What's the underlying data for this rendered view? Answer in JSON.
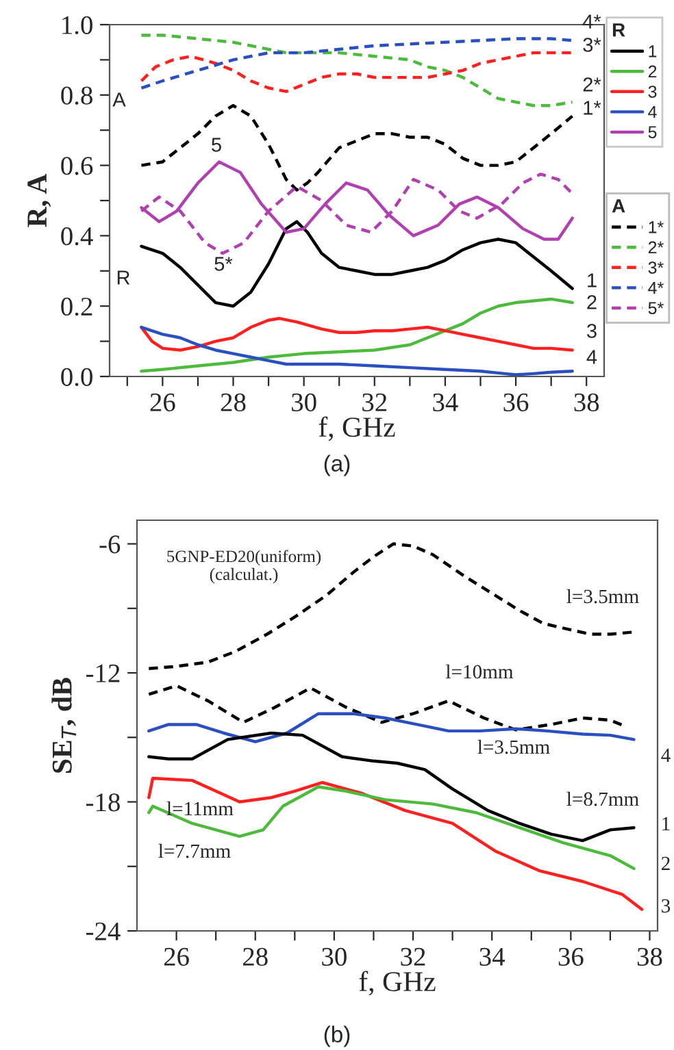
{
  "chart_data": [
    {
      "type": "line",
      "xlabel": "f, GHz",
      "ylabel": "R, A",
      "legend": "right",
      "legend_title": [
        "R",
        "A"
      ],
      "grid": false,
      "xlim": [
        24.5,
        38.5
      ],
      "ylim": [
        0,
        1.0
      ],
      "xticks": [
        {
          "value": 25,
          "label": null
        },
        26,
        {
          "value": 27,
          "label": null
        },
        28,
        {
          "value": 29,
          "label": null
        },
        30,
        {
          "value": 31,
          "label": null
        },
        32,
        {
          "value": 33,
          "label": null
        },
        34,
        {
          "value": 35,
          "label": null
        },
        36,
        {
          "value": 37,
          "label": null
        },
        38
      ],
      "yticks": [
        {
          "value": 0,
          "label": "0.0"
        },
        {
          "value": 0.1,
          "label": null
        },
        0.2,
        {
          "value": 0.3,
          "label": null
        },
        0.4,
        {
          "value": 0.5,
          "label": null
        },
        0.6,
        {
          "value": 0.7,
          "label": null
        },
        0.8,
        {
          "value": 0.9,
          "label": null
        },
        {
          "value": 1.0,
          "label": "1.0"
        }
      ],
      "series": [
        {
          "name": "1",
          "color": "#000000",
          "line_style": "solid",
          "x": [
            25.4,
            26.0,
            26.5,
            27.0,
            27.5,
            28.0,
            28.5,
            29.0,
            29.5,
            29.8,
            30.1,
            30.5,
            31.0,
            31.5,
            32.0,
            32.5,
            33.0,
            33.5,
            34.0,
            34.5,
            35.0,
            35.5,
            36.0,
            36.5,
            37.0,
            37.6
          ],
          "values": [
            0.37,
            0.35,
            0.31,
            0.26,
            0.21,
            0.2,
            0.24,
            0.32,
            0.42,
            0.44,
            0.41,
            0.35,
            0.31,
            0.3,
            0.29,
            0.29,
            0.3,
            0.31,
            0.33,
            0.36,
            0.38,
            0.39,
            0.38,
            0.34,
            0.3,
            0.25
          ]
        },
        {
          "name": "2",
          "color": "#4cbb3c",
          "line_style": "solid",
          "x": [
            25.4,
            26.0,
            27.0,
            28.0,
            29.0,
            30.0,
            31.0,
            32.0,
            33.0,
            33.5,
            34.0,
            34.5,
            35.0,
            35.5,
            36.0,
            36.5,
            37.0,
            37.6
          ],
          "values": [
            0.015,
            0.02,
            0.03,
            0.04,
            0.055,
            0.065,
            0.07,
            0.075,
            0.09,
            0.11,
            0.13,
            0.15,
            0.18,
            0.2,
            0.21,
            0.215,
            0.22,
            0.21
          ]
        },
        {
          "name": "3",
          "color": "#ff2020",
          "line_style": "solid",
          "x": [
            25.4,
            25.7,
            26.0,
            26.5,
            27.0,
            27.5,
            28.0,
            28.5,
            29.0,
            29.3,
            29.8,
            30.5,
            31.0,
            31.5,
            32.0,
            32.5,
            33.0,
            33.5,
            34.0,
            34.5,
            35.0,
            35.5,
            36.0,
            36.5,
            37.0,
            37.6
          ],
          "values": [
            0.14,
            0.1,
            0.08,
            0.075,
            0.085,
            0.1,
            0.11,
            0.14,
            0.16,
            0.165,
            0.155,
            0.135,
            0.125,
            0.125,
            0.13,
            0.13,
            0.135,
            0.14,
            0.13,
            0.12,
            0.11,
            0.1,
            0.09,
            0.08,
            0.08,
            0.075
          ]
        },
        {
          "name": "4",
          "color": "#2a4fbf",
          "line_style": "solid",
          "x": [
            25.4,
            26.0,
            26.5,
            27.0,
            27.5,
            28.0,
            28.5,
            29.0,
            29.5,
            30.0,
            31.0,
            32.0,
            33.0,
            34.0,
            35.0,
            35.5,
            36.0,
            36.5,
            37.0,
            37.6
          ],
          "values": [
            0.14,
            0.12,
            0.11,
            0.09,
            0.075,
            0.065,
            0.055,
            0.045,
            0.035,
            0.035,
            0.035,
            0.03,
            0.025,
            0.02,
            0.015,
            0.01,
            0.005,
            0.008,
            0.012,
            0.015
          ]
        },
        {
          "name": "5",
          "color": "#b040b0",
          "line_style": "solid",
          "x": [
            25.4,
            25.9,
            26.4,
            27.0,
            27.6,
            28.2,
            28.8,
            29.5,
            30.0,
            30.6,
            31.2,
            31.8,
            32.4,
            33.1,
            33.8,
            34.4,
            34.9,
            35.5,
            36.2,
            36.8,
            37.2,
            37.6
          ],
          "values": [
            0.48,
            0.44,
            0.47,
            0.55,
            0.61,
            0.58,
            0.49,
            0.41,
            0.42,
            0.49,
            0.55,
            0.53,
            0.46,
            0.4,
            0.43,
            0.49,
            0.51,
            0.48,
            0.42,
            0.39,
            0.39,
            0.45
          ]
        },
        {
          "name": "1*",
          "color": "#000000",
          "line_style": "dashed",
          "x": [
            25.4,
            26.0,
            26.5,
            27.0,
            27.5,
            28.0,
            28.5,
            29.0,
            29.5,
            29.8,
            30.1,
            30.4,
            31.0,
            31.5,
            32.0,
            32.5,
            33.0,
            33.5,
            34.0,
            34.5,
            35.0,
            35.5,
            36.0,
            36.5,
            37.0,
            37.6
          ],
          "values": [
            0.6,
            0.61,
            0.65,
            0.69,
            0.74,
            0.77,
            0.74,
            0.66,
            0.56,
            0.53,
            0.55,
            0.58,
            0.65,
            0.67,
            0.69,
            0.69,
            0.68,
            0.68,
            0.66,
            0.62,
            0.6,
            0.6,
            0.61,
            0.65,
            0.69,
            0.74
          ]
        },
        {
          "name": "2*",
          "color": "#4cbb3c",
          "line_style": "dashed",
          "x": [
            25.4,
            26.0,
            27.0,
            28.0,
            29.0,
            29.5,
            30.0,
            31.0,
            32.0,
            33.0,
            33.5,
            34.0,
            34.5,
            35.0,
            35.5,
            36.0,
            36.5,
            37.0,
            37.6
          ],
          "values": [
            0.97,
            0.97,
            0.96,
            0.95,
            0.93,
            0.92,
            0.92,
            0.92,
            0.91,
            0.9,
            0.88,
            0.87,
            0.85,
            0.82,
            0.79,
            0.78,
            0.77,
            0.77,
            0.78
          ]
        },
        {
          "name": "3*",
          "color": "#ff2020",
          "line_style": "dashed",
          "x": [
            25.4,
            25.8,
            26.3,
            26.8,
            27.5,
            28.0,
            28.5,
            29.0,
            29.5,
            30.0,
            30.5,
            31.0,
            31.5,
            32.0,
            32.5,
            33.0,
            33.5,
            34.0,
            34.5,
            35.0,
            35.5,
            36.0,
            36.5,
            37.0,
            37.6
          ],
          "values": [
            0.84,
            0.88,
            0.9,
            0.91,
            0.89,
            0.87,
            0.84,
            0.82,
            0.81,
            0.83,
            0.85,
            0.86,
            0.86,
            0.85,
            0.85,
            0.85,
            0.85,
            0.86,
            0.87,
            0.89,
            0.9,
            0.91,
            0.92,
            0.92,
            0.92
          ]
        },
        {
          "name": "4*",
          "color": "#2a4fbf",
          "line_style": "dashed",
          "x": [
            25.4,
            26.0,
            27.0,
            28.0,
            29.0,
            30.0,
            31.0,
            32.0,
            33.0,
            34.0,
            35.0,
            36.0,
            37.0,
            37.6
          ],
          "values": [
            0.82,
            0.84,
            0.87,
            0.9,
            0.92,
            0.92,
            0.93,
            0.94,
            0.945,
            0.95,
            0.955,
            0.96,
            0.96,
            0.955
          ]
        },
        {
          "name": "5*",
          "color": "#b040b0",
          "line_style": "dashed",
          "x": [
            25.4,
            25.9,
            26.5,
            27.2,
            27.7,
            28.3,
            29.0,
            29.8,
            30.5,
            31.2,
            31.9,
            32.5,
            33.1,
            33.8,
            34.4,
            34.9,
            35.6,
            36.2,
            36.7,
            37.2,
            37.6
          ],
          "values": [
            0.47,
            0.51,
            0.47,
            0.38,
            0.35,
            0.38,
            0.47,
            0.54,
            0.5,
            0.43,
            0.41,
            0.47,
            0.56,
            0.53,
            0.47,
            0.45,
            0.49,
            0.55,
            0.575,
            0.56,
            0.52
          ]
        }
      ],
      "annotations": [
        "4*",
        "3*",
        "2*",
        "1*",
        "1",
        "2",
        "3",
        "4",
        "5",
        "5*",
        "A",
        "R",
        "(a)"
      ]
    },
    {
      "type": "line",
      "xlabel": "f, GHz",
      "ylabel": "SE$_{T}$, dB",
      "grid": false,
      "xlim": [
        25.0,
        38.2
      ],
      "ylim": [
        -24,
        -4.9
      ],
      "xticks": [
        26,
        {
          "value": 27,
          "label": null
        },
        28,
        {
          "value": 29,
          "label": null
        },
        30,
        {
          "value": 31,
          "label": null
        },
        32,
        {
          "value": 33,
          "label": null
        },
        34,
        {
          "value": 35,
          "label": null
        },
        36,
        {
          "value": 37,
          "label": null
        },
        38
      ],
      "yticks": [
        -24,
        {
          "value": -21,
          "label": null
        },
        -18,
        {
          "value": -15,
          "label": null
        },
        -12,
        {
          "value": -9,
          "label": null
        },
        -6
      ],
      "series": [
        {
          "color": "#000000",
          "line_style": "dashed",
          "x": [
            25.3,
            26.0,
            26.8,
            27.5,
            28.3,
            29.0,
            29.8,
            30.5,
            31.0,
            31.5,
            32.0,
            32.5,
            33.3,
            34.0,
            34.7,
            35.3,
            36.0,
            36.5,
            37.0,
            37.6
          ],
          "values": [
            -11.8,
            -11.7,
            -11.5,
            -11.0,
            -10.2,
            -9.4,
            -8.4,
            -7.3,
            -6.6,
            -6.0,
            -6.1,
            -6.5,
            -7.5,
            -8.3,
            -9.1,
            -9.7,
            -10.0,
            -10.2,
            -10.2,
            -10.1
          ]
        },
        {
          "color": "#000000",
          "line_style": "dashed",
          "x": [
            25.3,
            26.0,
            26.8,
            27.7,
            28.5,
            29.4,
            30.3,
            31.2,
            32.0,
            32.9,
            33.8,
            34.6,
            35.5,
            36.3,
            37.0,
            37.4
          ],
          "values": [
            -13.0,
            -12.6,
            -13.3,
            -14.3,
            -13.6,
            -12.7,
            -13.6,
            -14.3,
            -13.9,
            -13.3,
            -14.1,
            -14.65,
            -14.4,
            -14.1,
            -14.2,
            -14.5
          ]
        },
        {
          "color": "#2a4fbf",
          "line_style": "solid",
          "x": [
            25.3,
            25.8,
            26.5,
            27.2,
            28.0,
            28.8,
            29.6,
            30.5,
            31.3,
            32.1,
            32.9,
            33.7,
            34.6,
            35.4,
            36.3,
            37.0,
            37.6
          ],
          "values": [
            -14.7,
            -14.4,
            -14.4,
            -14.8,
            -15.2,
            -14.8,
            -13.9,
            -13.9,
            -14.1,
            -14.4,
            -14.7,
            -14.7,
            -14.6,
            -14.7,
            -14.85,
            -14.9,
            -15.1
          ]
        },
        {
          "color": "#000000",
          "line_style": "solid",
          "x": [
            25.3,
            25.8,
            26.4,
            27.3,
            28.4,
            29.2,
            30.2,
            31.0,
            31.6,
            32.3,
            33.0,
            33.9,
            34.7,
            35.5,
            36.3,
            37.0,
            37.6
          ],
          "values": [
            -15.9,
            -16.0,
            -16.0,
            -15.1,
            -14.8,
            -14.9,
            -15.9,
            -16.1,
            -16.2,
            -16.5,
            -17.4,
            -18.4,
            -19.0,
            -19.5,
            -19.8,
            -19.3,
            -19.2
          ]
        },
        {
          "color": "#ff2020",
          "line_style": "solid",
          "x": [
            25.3,
            25.4,
            26.4,
            27.0,
            27.6,
            28.4,
            29.0,
            29.7,
            30.7,
            31.8,
            33.0,
            34.1,
            35.2,
            36.3,
            37.3,
            37.8
          ],
          "values": [
            -17.8,
            -16.9,
            -17.0,
            -17.5,
            -18.0,
            -17.8,
            -17.5,
            -17.1,
            -17.6,
            -18.4,
            -19.0,
            -20.3,
            -21.2,
            -21.7,
            -22.3,
            -23.0
          ]
        },
        {
          "color": "#4cbb3c",
          "line_style": "solid",
          "x": [
            25.3,
            25.4,
            26.4,
            27.6,
            28.2,
            28.7,
            29.6,
            30.3,
            31.3,
            32.5,
            33.6,
            34.7,
            35.8,
            37.0,
            37.6
          ],
          "values": [
            -18.5,
            -18.2,
            -19.0,
            -19.6,
            -19.3,
            -18.2,
            -17.3,
            -17.5,
            -17.9,
            -18.1,
            -18.5,
            -19.2,
            -19.9,
            -20.5,
            -21.1
          ]
        }
      ],
      "annotations": [
        "5GNP-ED20(uniform)\n(calculat.)",
        "l=3.5mm",
        "l=10mm",
        "l=3.5mm",
        "l=11mm",
        "l=7.7mm",
        "l=8.7mm",
        "1",
        "2",
        "3",
        "4",
        "(b)"
      ]
    }
  ]
}
